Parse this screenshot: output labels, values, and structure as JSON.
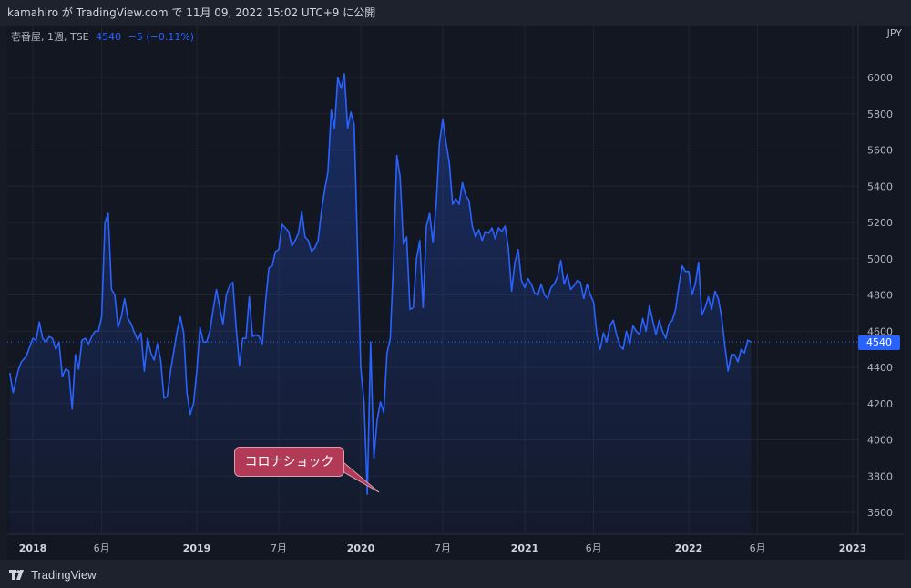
{
  "header": {
    "publish_text": "kamahiro が TradingView.com で 11月 09, 2022 15:02 UTC+9 に公開"
  },
  "legend": {
    "symbol": "壱番屋, 1週, TSE",
    "value": "4540",
    "change": "−5 (−0.11%)"
  },
  "currency": "JPY",
  "last_price_label": "4540",
  "annotation": "コロナショック",
  "footer": {
    "brand": "TradingView"
  },
  "colors": {
    "line": "#2962ff",
    "callout": "#b33a56",
    "background": "#131722"
  },
  "chart_data": {
    "type": "area",
    "ylim": [
      3550,
      6150
    ],
    "y_ticks": [
      3600,
      3800,
      4000,
      4200,
      4400,
      4600,
      4800,
      5000,
      5200,
      5400,
      5600,
      5800,
      6000
    ],
    "x_ticks": [
      {
        "label": "2018",
        "t": 2018.0,
        "bold": true
      },
      {
        "label": "6月",
        "t": 2018.42,
        "bold": false
      },
      {
        "label": "2019",
        "t": 2019.0,
        "bold": true
      },
      {
        "label": "7月",
        "t": 2019.5,
        "bold": false
      },
      {
        "label": "2020",
        "t": 2020.0,
        "bold": true
      },
      {
        "label": "7月",
        "t": 2020.5,
        "bold": false
      },
      {
        "label": "2021",
        "t": 2021.0,
        "bold": true
      },
      {
        "label": "6月",
        "t": 2021.42,
        "bold": false
      },
      {
        "label": "2022",
        "t": 2022.0,
        "bold": true
      },
      {
        "label": "6月",
        "t": 2022.42,
        "bold": false
      },
      {
        "label": "2023",
        "t": 2023.0,
        "bold": true
      }
    ],
    "last_value": 4540,
    "series": [
      {
        "points": [
          [
            2017.86,
            4370
          ],
          [
            2017.88,
            4260
          ],
          [
            2017.91,
            4380
          ],
          [
            2017.93,
            4430
          ],
          [
            2017.96,
            4460
          ],
          [
            2017.98,
            4510
          ],
          [
            2018.0,
            4560
          ],
          [
            2018.02,
            4550
          ],
          [
            2018.04,
            4650
          ],
          [
            2018.06,
            4560
          ],
          [
            2018.08,
            4540
          ],
          [
            2018.1,
            4570
          ],
          [
            2018.12,
            4560
          ],
          [
            2018.14,
            4500
          ],
          [
            2018.16,
            4540
          ],
          [
            2018.18,
            4350
          ],
          [
            2018.2,
            4390
          ],
          [
            2018.22,
            4380
          ],
          [
            2018.24,
            4170
          ],
          [
            2018.26,
            4470
          ],
          [
            2018.28,
            4390
          ],
          [
            2018.3,
            4550
          ],
          [
            2018.32,
            4560
          ],
          [
            2018.34,
            4530
          ],
          [
            2018.36,
            4570
          ],
          [
            2018.38,
            4600
          ],
          [
            2018.4,
            4600
          ],
          [
            2018.42,
            4680
          ],
          [
            2018.44,
            5200
          ],
          [
            2018.46,
            5250
          ],
          [
            2018.48,
            4830
          ],
          [
            2018.5,
            4800
          ],
          [
            2018.52,
            4620
          ],
          [
            2018.54,
            4680
          ],
          [
            2018.56,
            4780
          ],
          [
            2018.58,
            4670
          ],
          [
            2018.6,
            4640
          ],
          [
            2018.62,
            4590
          ],
          [
            2018.64,
            4550
          ],
          [
            2018.66,
            4590
          ],
          [
            2018.68,
            4380
          ],
          [
            2018.7,
            4560
          ],
          [
            2018.72,
            4480
          ],
          [
            2018.74,
            4440
          ],
          [
            2018.76,
            4530
          ],
          [
            2018.78,
            4440
          ],
          [
            2018.8,
            4230
          ],
          [
            2018.82,
            4240
          ],
          [
            2018.84,
            4380
          ],
          [
            2018.86,
            4490
          ],
          [
            2018.88,
            4600
          ],
          [
            2018.9,
            4680
          ],
          [
            2018.92,
            4590
          ],
          [
            2018.94,
            4260
          ],
          [
            2018.96,
            4140
          ],
          [
            2018.98,
            4200
          ],
          [
            2019.0,
            4380
          ],
          [
            2019.02,
            4620
          ],
          [
            2019.04,
            4540
          ],
          [
            2019.06,
            4540
          ],
          [
            2019.08,
            4600
          ],
          [
            2019.1,
            4720
          ],
          [
            2019.12,
            4830
          ],
          [
            2019.14,
            4730
          ],
          [
            2019.16,
            4640
          ],
          [
            2019.18,
            4800
          ],
          [
            2019.2,
            4850
          ],
          [
            2019.22,
            4870
          ],
          [
            2019.24,
            4620
          ],
          [
            2019.26,
            4410
          ],
          [
            2019.28,
            4560
          ],
          [
            2019.3,
            4560
          ],
          [
            2019.32,
            4790
          ],
          [
            2019.34,
            4570
          ],
          [
            2019.36,
            4580
          ],
          [
            2019.38,
            4570
          ],
          [
            2019.4,
            4530
          ],
          [
            2019.42,
            4770
          ],
          [
            2019.44,
            4950
          ],
          [
            2019.46,
            4960
          ],
          [
            2019.48,
            5040
          ],
          [
            2019.5,
            5050
          ],
          [
            2019.52,
            5190
          ],
          [
            2019.54,
            5170
          ],
          [
            2019.56,
            5150
          ],
          [
            2019.58,
            5070
          ],
          [
            2019.6,
            5100
          ],
          [
            2019.62,
            5140
          ],
          [
            2019.64,
            5260
          ],
          [
            2019.66,
            5120
          ],
          [
            2019.68,
            5100
          ],
          [
            2019.7,
            5040
          ],
          [
            2019.72,
            5060
          ],
          [
            2019.74,
            5100
          ],
          [
            2019.76,
            5260
          ],
          [
            2019.78,
            5380
          ],
          [
            2019.8,
            5480
          ],
          [
            2019.82,
            5820
          ],
          [
            2019.84,
            5720
          ],
          [
            2019.86,
            6000
          ],
          [
            2019.88,
            5940
          ],
          [
            2019.9,
            6020
          ],
          [
            2019.92,
            5720
          ],
          [
            2019.94,
            5810
          ],
          [
            2019.96,
            5740
          ],
          [
            2019.98,
            5060
          ],
          [
            2020.0,
            4400
          ],
          [
            2020.02,
            4210
          ],
          [
            2020.04,
            3700
          ],
          [
            2020.06,
            4540
          ],
          [
            2020.08,
            3900
          ],
          [
            2020.1,
            4110
          ],
          [
            2020.12,
            4210
          ],
          [
            2020.14,
            4150
          ],
          [
            2020.16,
            4480
          ],
          [
            2020.18,
            4560
          ],
          [
            2020.2,
            4990
          ],
          [
            2020.22,
            5570
          ],
          [
            2020.24,
            5450
          ],
          [
            2020.26,
            5080
          ],
          [
            2020.28,
            5120
          ],
          [
            2020.3,
            4720
          ],
          [
            2020.32,
            4730
          ],
          [
            2020.34,
            5000
          ],
          [
            2020.36,
            5100
          ],
          [
            2020.38,
            4730
          ],
          [
            2020.4,
            5180
          ],
          [
            2020.42,
            5250
          ],
          [
            2020.44,
            5090
          ],
          [
            2020.46,
            5300
          ],
          [
            2020.48,
            5640
          ],
          [
            2020.5,
            5770
          ],
          [
            2020.52,
            5640
          ],
          [
            2020.54,
            5530
          ],
          [
            2020.56,
            5300
          ],
          [
            2020.58,
            5330
          ],
          [
            2020.6,
            5300
          ],
          [
            2020.62,
            5420
          ],
          [
            2020.64,
            5350
          ],
          [
            2020.66,
            5320
          ],
          [
            2020.68,
            5180
          ],
          [
            2020.7,
            5120
          ],
          [
            2020.72,
            5160
          ],
          [
            2020.74,
            5100
          ],
          [
            2020.76,
            5150
          ],
          [
            2020.78,
            5140
          ],
          [
            2020.8,
            5170
          ],
          [
            2020.82,
            5110
          ],
          [
            2020.84,
            5170
          ],
          [
            2020.86,
            5150
          ],
          [
            2020.88,
            5180
          ],
          [
            2020.9,
            5060
          ],
          [
            2020.92,
            4820
          ],
          [
            2020.94,
            4980
          ],
          [
            2020.96,
            5050
          ],
          [
            2020.98,
            4880
          ],
          [
            2021.0,
            4840
          ],
          [
            2021.02,
            4890
          ],
          [
            2021.04,
            4860
          ],
          [
            2021.06,
            4810
          ],
          [
            2021.08,
            4800
          ],
          [
            2021.1,
            4860
          ],
          [
            2021.12,
            4800
          ],
          [
            2021.14,
            4780
          ],
          [
            2021.16,
            4840
          ],
          [
            2021.18,
            4860
          ],
          [
            2021.2,
            4900
          ],
          [
            2021.22,
            4990
          ],
          [
            2021.24,
            4860
          ],
          [
            2021.26,
            4910
          ],
          [
            2021.28,
            4830
          ],
          [
            2021.3,
            4850
          ],
          [
            2021.32,
            4880
          ],
          [
            2021.34,
            4870
          ],
          [
            2021.36,
            4780
          ],
          [
            2021.38,
            4860
          ],
          [
            2021.4,
            4800
          ],
          [
            2021.42,
            4760
          ],
          [
            2021.44,
            4580
          ],
          [
            2021.46,
            4500
          ],
          [
            2021.48,
            4590
          ],
          [
            2021.5,
            4540
          ],
          [
            2021.52,
            4630
          ],
          [
            2021.54,
            4660
          ],
          [
            2021.56,
            4580
          ],
          [
            2021.58,
            4520
          ],
          [
            2021.6,
            4500
          ],
          [
            2021.62,
            4600
          ],
          [
            2021.64,
            4530
          ],
          [
            2021.66,
            4630
          ],
          [
            2021.68,
            4600
          ],
          [
            2021.7,
            4580
          ],
          [
            2021.72,
            4670
          ],
          [
            2021.74,
            4600
          ],
          [
            2021.76,
            4740
          ],
          [
            2021.78,
            4660
          ],
          [
            2021.8,
            4580
          ],
          [
            2021.82,
            4660
          ],
          [
            2021.84,
            4600
          ],
          [
            2021.86,
            4560
          ],
          [
            2021.88,
            4640
          ],
          [
            2021.9,
            4660
          ],
          [
            2021.92,
            4720
          ],
          [
            2021.94,
            4850
          ],
          [
            2021.96,
            4960
          ],
          [
            2021.98,
            4930
          ],
          [
            2022.0,
            4930
          ],
          [
            2022.02,
            4800
          ],
          [
            2022.04,
            4860
          ],
          [
            2022.06,
            4980
          ],
          [
            2022.08,
            4690
          ],
          [
            2022.1,
            4730
          ],
          [
            2022.12,
            4790
          ],
          [
            2022.14,
            4720
          ],
          [
            2022.16,
            4820
          ],
          [
            2022.18,
            4780
          ],
          [
            2022.2,
            4680
          ],
          [
            2022.22,
            4520
          ],
          [
            2022.24,
            4380
          ],
          [
            2022.26,
            4470
          ],
          [
            2022.28,
            4470
          ],
          [
            2022.3,
            4430
          ],
          [
            2022.32,
            4500
          ],
          [
            2022.34,
            4480
          ],
          [
            2022.36,
            4550
          ],
          [
            2022.38,
            4540
          ]
        ]
      }
    ]
  }
}
